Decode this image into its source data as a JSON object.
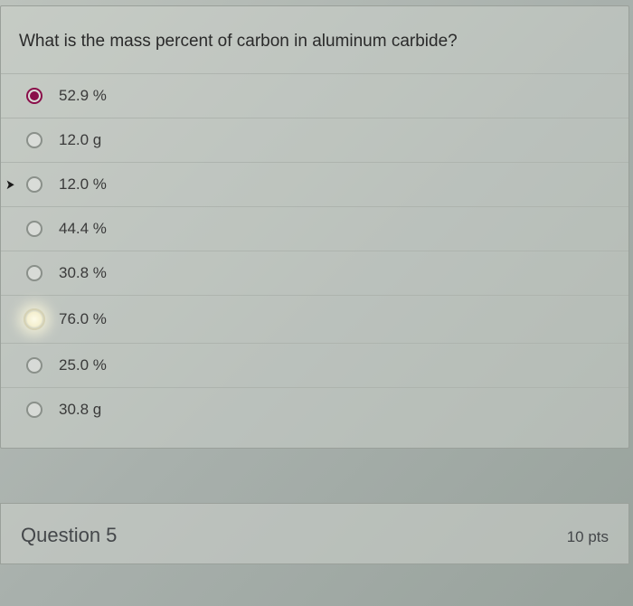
{
  "question": {
    "prompt": "What is the mass percent of carbon in aluminum carbide?",
    "options": [
      {
        "label": "52.9 %",
        "selected": true,
        "glow": false,
        "cursor": false
      },
      {
        "label": "12.0 g",
        "selected": false,
        "glow": false,
        "cursor": false
      },
      {
        "label": "12.0 %",
        "selected": false,
        "glow": false,
        "cursor": true
      },
      {
        "label": "44.4 %",
        "selected": false,
        "glow": false,
        "cursor": false
      },
      {
        "label": "30.8 %",
        "selected": false,
        "glow": false,
        "cursor": false
      },
      {
        "label": "76.0 %",
        "selected": false,
        "glow": true,
        "cursor": false
      },
      {
        "label": "25.0 %",
        "selected": false,
        "glow": false,
        "cursor": false
      },
      {
        "label": "30.8 g",
        "selected": false,
        "glow": false,
        "cursor": false
      }
    ]
  },
  "next": {
    "title": "Question 5",
    "points": "10 pts"
  },
  "colors": {
    "accent": "#8a0f4a",
    "border": "#aeb4ae",
    "text": "#2a2a2a"
  }
}
